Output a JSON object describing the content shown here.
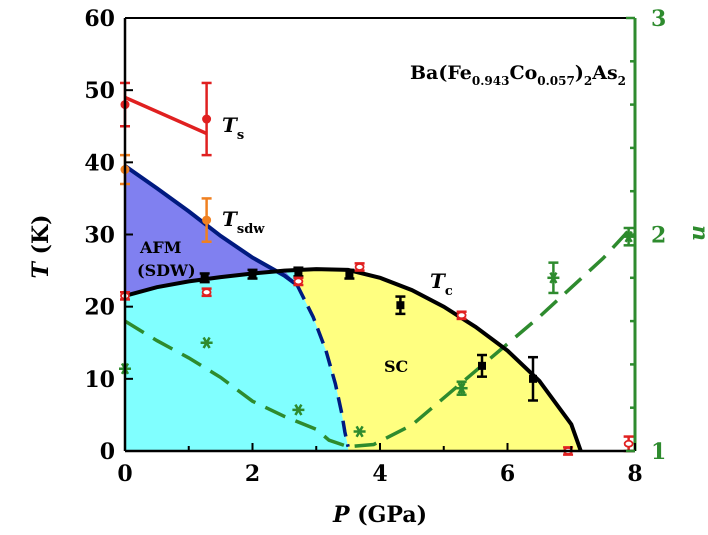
{
  "chart_data": {
    "type": "scatter",
    "title": "",
    "xlabel": {
      "main": "P",
      "unit": " (GPa)"
    },
    "ylabel": {
      "main": "T",
      "unit": " (K)"
    },
    "y2label": "n",
    "xlim": [
      0,
      8
    ],
    "ylim": [
      0,
      60
    ],
    "y2lim": [
      1,
      3
    ],
    "x_ticks": [
      "0",
      "2",
      "4",
      "6",
      "8"
    ],
    "y_ticks": [
      "0",
      "10",
      "20",
      "30",
      "40",
      "50",
      "60"
    ],
    "y2_ticks": [
      "1",
      "2",
      "3"
    ],
    "grid": false,
    "legend": "none",
    "compound": {
      "base": "Ba(Fe",
      "s1": "0.943",
      "mid": "Co",
      "s2": "0.057",
      "close": ")",
      "s3": "2",
      "end": "As",
      "s4": "2"
    },
    "annotations": {
      "ts": {
        "main": "T",
        "sub": "s"
      },
      "tsdw": {
        "main": "T",
        "sub": "sdw"
      },
      "tc": {
        "main": "T",
        "sub": "c"
      },
      "afm": "AFM",
      "sdw": "(SDW)",
      "sc": "SC"
    },
    "colors": {
      "axis": "#000000",
      "right_axis": "#2e8b2e",
      "afm_region": "#8080f0",
      "sc_region": "#ffff80",
      "cyan_region": "#80ffff",
      "ts": "#e02020",
      "tsdw": "#f08020",
      "tsdw_line": "#001a80",
      "tc": "#000000",
      "n": "#2e8b2e",
      "open_points": "#e02020"
    },
    "series": [
      {
        "key": "ts",
        "marker": "circle",
        "points": [
          {
            "x": 0.0,
            "y": 48,
            "err": 3
          },
          {
            "x": 1.28,
            "y": 46,
            "err": 5
          }
        ]
      },
      {
        "key": "tsdw",
        "marker": "circle",
        "points": [
          {
            "x": 0.0,
            "y": 39,
            "err": 2
          },
          {
            "x": 1.28,
            "y": 32,
            "err": 3
          }
        ]
      },
      {
        "key": "tc_filled",
        "marker": "square",
        "points": [
          {
            "x": 1.25,
            "y": 24,
            "err": 0.6
          },
          {
            "x": 2.0,
            "y": 24.5,
            "err": 0.6
          },
          {
            "x": 2.72,
            "y": 24.8,
            "err": 0.6
          },
          {
            "x": 3.52,
            "y": 24.5,
            "err": 0.6
          },
          {
            "x": 4.32,
            "y": 20.2,
            "err": 1.2
          },
          {
            "x": 5.6,
            "y": 11.8,
            "err": 1.5
          },
          {
            "x": 6.4,
            "y": 10,
            "err": 3
          }
        ]
      },
      {
        "key": "tc_open",
        "marker": "open-circle",
        "points": [
          {
            "x": 0.0,
            "y": 21.5,
            "err": 0.5
          },
          {
            "x": 1.28,
            "y": 22,
            "err": 0.5
          },
          {
            "x": 2.72,
            "y": 23.5,
            "err": 0.5
          },
          {
            "x": 3.68,
            "y": 25.5,
            "err": 0.5
          },
          {
            "x": 5.28,
            "y": 18.8,
            "err": 0.5
          },
          {
            "x": 6.95,
            "y": 0,
            "err": 0.5
          },
          {
            "x": 7.9,
            "y": 1,
            "err": 1
          }
        ]
      },
      {
        "key": "n",
        "axis": "right",
        "marker": "star",
        "points": [
          {
            "x": 0.0,
            "y": 1.38
          },
          {
            "x": 1.28,
            "y": 1.5
          },
          {
            "x": 2.72,
            "y": 1.19
          },
          {
            "x": 3.68,
            "y": 1.09
          },
          {
            "x": 5.28,
            "y": 1.29,
            "err": 0.03
          },
          {
            "x": 6.72,
            "y": 1.8,
            "err": 0.07
          },
          {
            "x": 7.9,
            "y": 1.99,
            "err": 0.04
          }
        ]
      }
    ],
    "curves": {
      "tc_fit": [
        [
          0,
          21.5
        ],
        [
          0.5,
          22.7
        ],
        [
          1,
          23.5
        ],
        [
          1.5,
          24.1
        ],
        [
          2,
          24.6
        ],
        [
          2.5,
          25
        ],
        [
          3,
          25.2
        ],
        [
          3.5,
          25.1
        ],
        [
          4,
          24
        ],
        [
          4.5,
          22.3
        ],
        [
          5,
          20
        ],
        [
          5.5,
          17.2
        ],
        [
          6,
          13.9
        ],
        [
          6.5,
          9.7
        ],
        [
          7,
          3.7
        ],
        [
          7.15,
          0
        ]
      ],
      "ts_fit": [
        [
          0,
          49
        ],
        [
          1.28,
          44
        ]
      ],
      "tsdw_fit": [
        [
          0,
          39.5
        ],
        [
          0.5,
          36.4
        ],
        [
          1,
          33.2
        ],
        [
          1.5,
          29.8
        ],
        [
          2,
          26.8
        ],
        [
          2.5,
          24.3
        ],
        [
          2.7,
          23
        ]
      ],
      "sdw_dashed": [
        [
          2.7,
          23
        ],
        [
          2.95,
          18.6
        ],
        [
          3.15,
          14
        ],
        [
          3.3,
          9.3
        ],
        [
          3.4,
          5.2
        ],
        [
          3.45,
          2.6
        ],
        [
          3.5,
          0.6
        ]
      ],
      "n_dashed": [
        [
          0,
          1.6
        ],
        [
          0.5,
          1.51
        ],
        [
          1,
          1.43
        ],
        [
          1.5,
          1.34
        ],
        [
          2,
          1.23
        ],
        [
          2.5,
          1.16
        ],
        [
          3,
          1.1
        ],
        [
          3.2,
          1.05
        ],
        [
          3.5,
          1.02
        ],
        [
          3.9,
          1.03
        ],
        [
          4.5,
          1.12
        ],
        [
          5.5,
          1.37
        ],
        [
          6.5,
          1.62
        ],
        [
          7.5,
          1.89
        ],
        [
          8,
          2.05
        ]
      ]
    }
  }
}
